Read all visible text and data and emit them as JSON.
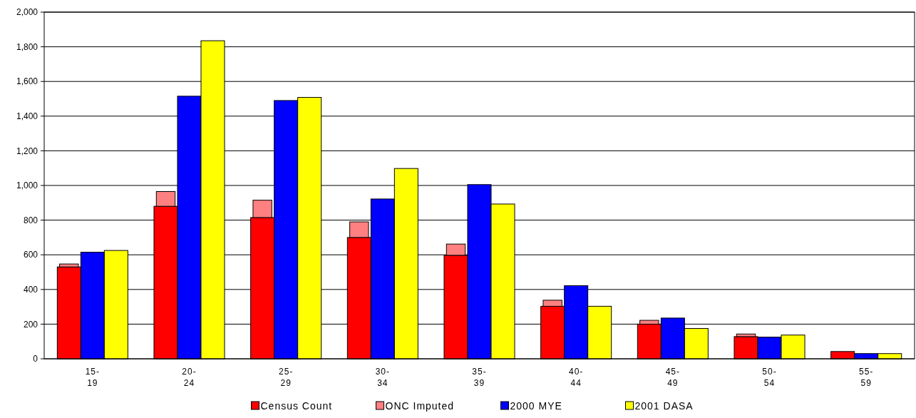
{
  "chart_data": {
    "type": "bar",
    "categories": [
      "15-19",
      "20-24",
      "25-29",
      "30-34",
      "35-39",
      "40-44",
      "45-49",
      "50-54",
      "55-59"
    ],
    "series": [
      {
        "name": "Census Count",
        "color": "#ff0000",
        "values": [
          530,
          880,
          815,
          700,
          597,
          303,
          200,
          128,
          42
        ]
      },
      {
        "name": "ONC Imputed",
        "color": "#ff8080",
        "base": [
          530,
          880,
          815,
          700,
          597,
          303,
          200,
          128,
          null
        ],
        "values": [
          17,
          85,
          100,
          90,
          65,
          35,
          22,
          15,
          null
        ]
      },
      {
        "name": "2000 MYE",
        "color": "#0000ff",
        "values": [
          615,
          1515,
          1490,
          922,
          1005,
          422,
          235,
          125,
          30
        ]
      },
      {
        "name": "2001 DASA",
        "color": "#ffff00",
        "values": [
          625,
          1835,
          1508,
          1098,
          893,
          303,
          175,
          137,
          30
        ]
      }
    ],
    "ylim": [
      0,
      2000
    ],
    "yticks": [
      0,
      {
        "value": 200,
        "label": "200"
      },
      {
        "value": 400,
        "label": "400"
      },
      {
        "value": 600,
        "label": "600"
      },
      {
        "value": 800,
        "label": "800"
      },
      {
        "value": 1000,
        "label": "1,000"
      },
      {
        "value": 1200,
        "label": "1,200"
      },
      {
        "value": 1400,
        "label": "1,400"
      },
      {
        "value": 1600,
        "label": "1,600"
      },
      {
        "value": 1800,
        "label": "1,800"
      },
      {
        "value": 2000,
        "label": "2,000"
      }
    ],
    "grid": "y",
    "legend": "bottom"
  }
}
